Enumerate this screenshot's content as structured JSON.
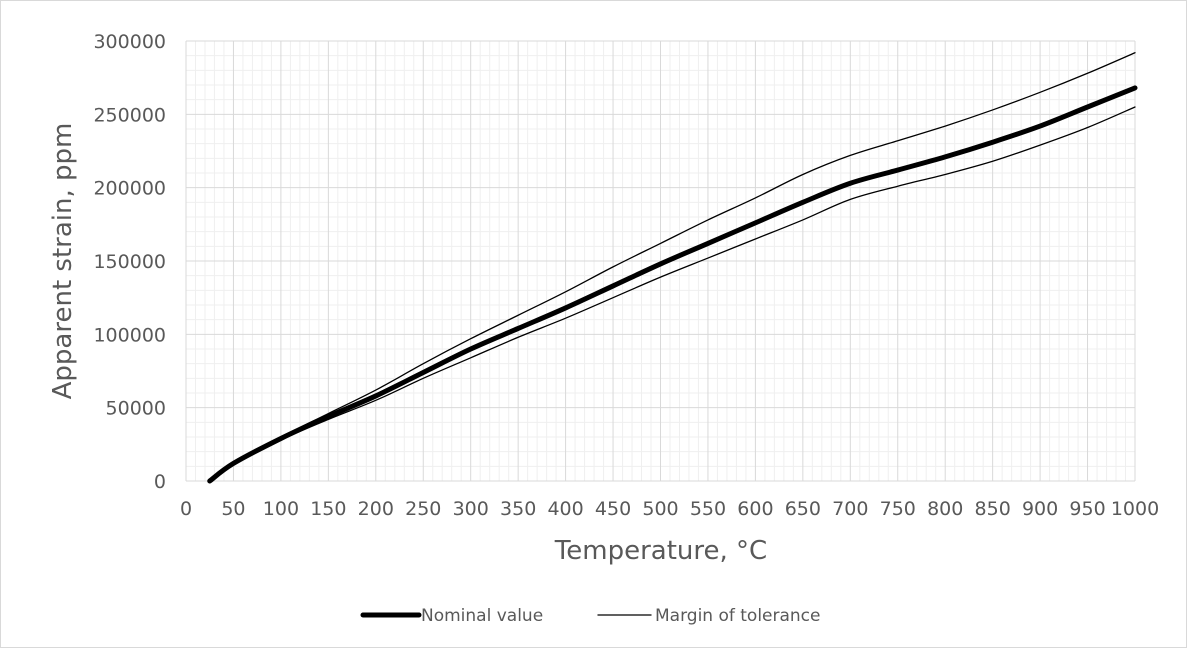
{
  "chart_data": {
    "type": "line",
    "title": "",
    "xlabel": "Temperature, °C",
    "ylabel": "Apparent strain, ppm",
    "xlim": [
      0,
      1000
    ],
    "ylim": [
      0,
      300000
    ],
    "x_ticks": [
      0,
      50,
      100,
      150,
      200,
      250,
      300,
      350,
      400,
      450,
      500,
      550,
      600,
      650,
      700,
      750,
      800,
      850,
      900,
      950,
      1000
    ],
    "x_tick_labels": [
      "0",
      "50",
      "100",
      "150",
      "200",
      "250",
      "300",
      "350",
      "400",
      "450",
      "500",
      "550",
      "600",
      "650",
      "700",
      "750",
      "800",
      "850",
      "900",
      "950",
      "1000"
    ],
    "y_ticks": [
      0,
      50000,
      100000,
      150000,
      200000,
      250000,
      300000
    ],
    "y_tick_labels": [
      "0",
      "50000",
      "100000",
      "150000",
      "200000",
      "250000",
      "300000"
    ],
    "grid": true,
    "minor_grid": true,
    "legend_position": "bottom",
    "series": [
      {
        "name": "Nominal value",
        "style": "thick",
        "color": "#000000",
        "x": [
          25,
          50,
          100,
          150,
          200,
          250,
          300,
          350,
          400,
          450,
          500,
          550,
          600,
          650,
          700,
          750,
          800,
          850,
          900,
          950,
          1000
        ],
        "y": [
          0,
          12000,
          29000,
          44000,
          58000,
          74000,
          90000,
          104000,
          118000,
          133000,
          148000,
          162000,
          176000,
          190000,
          203000,
          212000,
          221000,
          231000,
          242000,
          255000,
          268000
        ]
      },
      {
        "name": "Margin of tolerance",
        "style": "thin",
        "color": "#000000",
        "x": [
          25,
          50,
          100,
          150,
          200,
          250,
          300,
          350,
          400,
          450,
          500,
          550,
          600,
          650,
          700,
          750,
          800,
          850,
          900,
          950,
          1000
        ],
        "y": [
          0,
          12500,
          30000,
          46000,
          62000,
          80000,
          97000,
          113000,
          129000,
          146000,
          162000,
          178000,
          193000,
          209000,
          222000,
          232000,
          242000,
          253000,
          265000,
          278000,
          292000
        ]
      },
      {
        "name": "",
        "style": "thin",
        "color": "#000000",
        "x": [
          25,
          50,
          100,
          150,
          200,
          250,
          300,
          350,
          400,
          450,
          500,
          550,
          600,
          650,
          700,
          750,
          800,
          850,
          900,
          950,
          1000
        ],
        "y": [
          0,
          11500,
          28000,
          42000,
          55000,
          70000,
          84000,
          98000,
          111000,
          125000,
          139000,
          152000,
          165000,
          178000,
          192000,
          201000,
          209000,
          218000,
          229000,
          241000,
          255000
        ]
      }
    ],
    "legend": [
      {
        "label": "Nominal value",
        "style": "thick"
      },
      {
        "label": "Margin of tolerance",
        "style": "thin"
      }
    ]
  },
  "colors": {
    "grid_major": "#d9d9d9",
    "grid_minor": "#efefef",
    "text": "#595959",
    "line": "#000000"
  }
}
